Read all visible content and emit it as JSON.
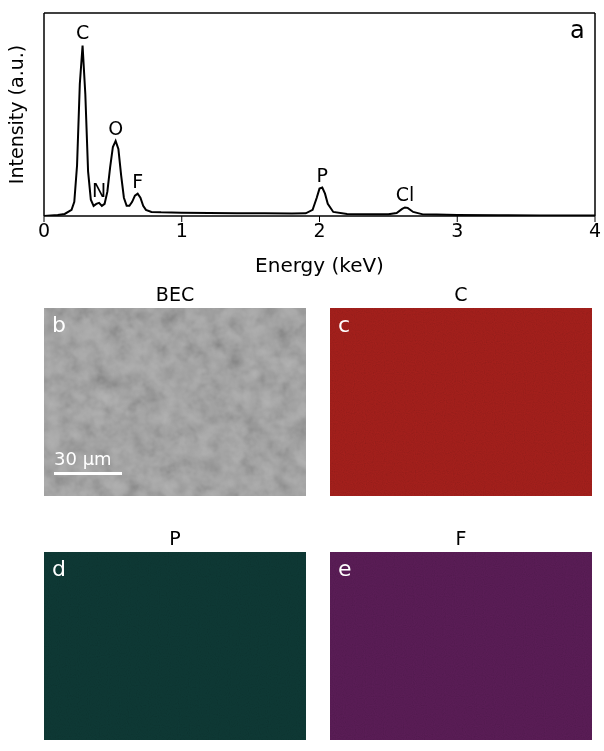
{
  "chart_data": {
    "type": "line",
    "panel": "a",
    "x_label": "Energy (keV)",
    "y_label": "Intensity (a.u.)",
    "color": "#000000",
    "xlim": [
      0,
      4
    ],
    "xticks": [
      0,
      1,
      2,
      3,
      4
    ],
    "ylim": [
      0,
      1
    ],
    "tick_labels": "x",
    "grid": false,
    "x": [
      0,
      0.1,
      0.15,
      0.2,
      0.22,
      0.24,
      0.26,
      0.28,
      0.3,
      0.32,
      0.34,
      0.36,
      0.38,
      0.4,
      0.42,
      0.44,
      0.46,
      0.48,
      0.5,
      0.52,
      0.54,
      0.56,
      0.58,
      0.6,
      0.62,
      0.64,
      0.66,
      0.68,
      0.7,
      0.72,
      0.74,
      0.78,
      0.85,
      1.0,
      1.2,
      1.4,
      1.6,
      1.8,
      1.9,
      1.95,
      1.98,
      2.0,
      2.02,
      2.04,
      2.06,
      2.1,
      2.2,
      2.4,
      2.5,
      2.56,
      2.6,
      2.62,
      2.64,
      2.68,
      2.75,
      2.85,
      3.0,
      3.3,
      3.6,
      4.0
    ],
    "values": [
      0,
      0.005,
      0.01,
      0.03,
      0.07,
      0.25,
      0.65,
      0.84,
      0.6,
      0.22,
      0.08,
      0.05,
      0.06,
      0.065,
      0.05,
      0.06,
      0.12,
      0.24,
      0.34,
      0.37,
      0.33,
      0.2,
      0.09,
      0.05,
      0.05,
      0.07,
      0.1,
      0.11,
      0.09,
      0.05,
      0.03,
      0.02,
      0.018,
      0.016,
      0.015,
      0.014,
      0.013,
      0.012,
      0.013,
      0.03,
      0.09,
      0.135,
      0.14,
      0.11,
      0.06,
      0.02,
      0.01,
      0.009,
      0.009,
      0.015,
      0.035,
      0.042,
      0.04,
      0.02,
      0.008,
      0.007,
      0.005,
      0.004,
      0.003,
      0.003
    ],
    "annotations": [
      {
        "text": "C",
        "x": 0.28,
        "y": 0.84
      },
      {
        "text": "N",
        "x": 0.4,
        "y": 0.065
      },
      {
        "text": "O",
        "x": 0.52,
        "y": 0.37
      },
      {
        "text": "F",
        "x": 0.68,
        "y": 0.11
      },
      {
        "text": "P",
        "x": 2.02,
        "y": 0.14
      },
      {
        "text": "Cl",
        "x": 2.62,
        "y": 0.042
      }
    ]
  },
  "maps": [
    {
      "panel": "b",
      "title": "BEC",
      "color": "#b4b4b4",
      "scale_bar": "30 μm"
    },
    {
      "panel": "c",
      "title": "C",
      "color": "#a8201c"
    },
    {
      "panel": "d",
      "title": "P",
      "color": "#0e3a36"
    },
    {
      "panel": "e",
      "title": "F",
      "color": "#5c1d58"
    }
  ]
}
